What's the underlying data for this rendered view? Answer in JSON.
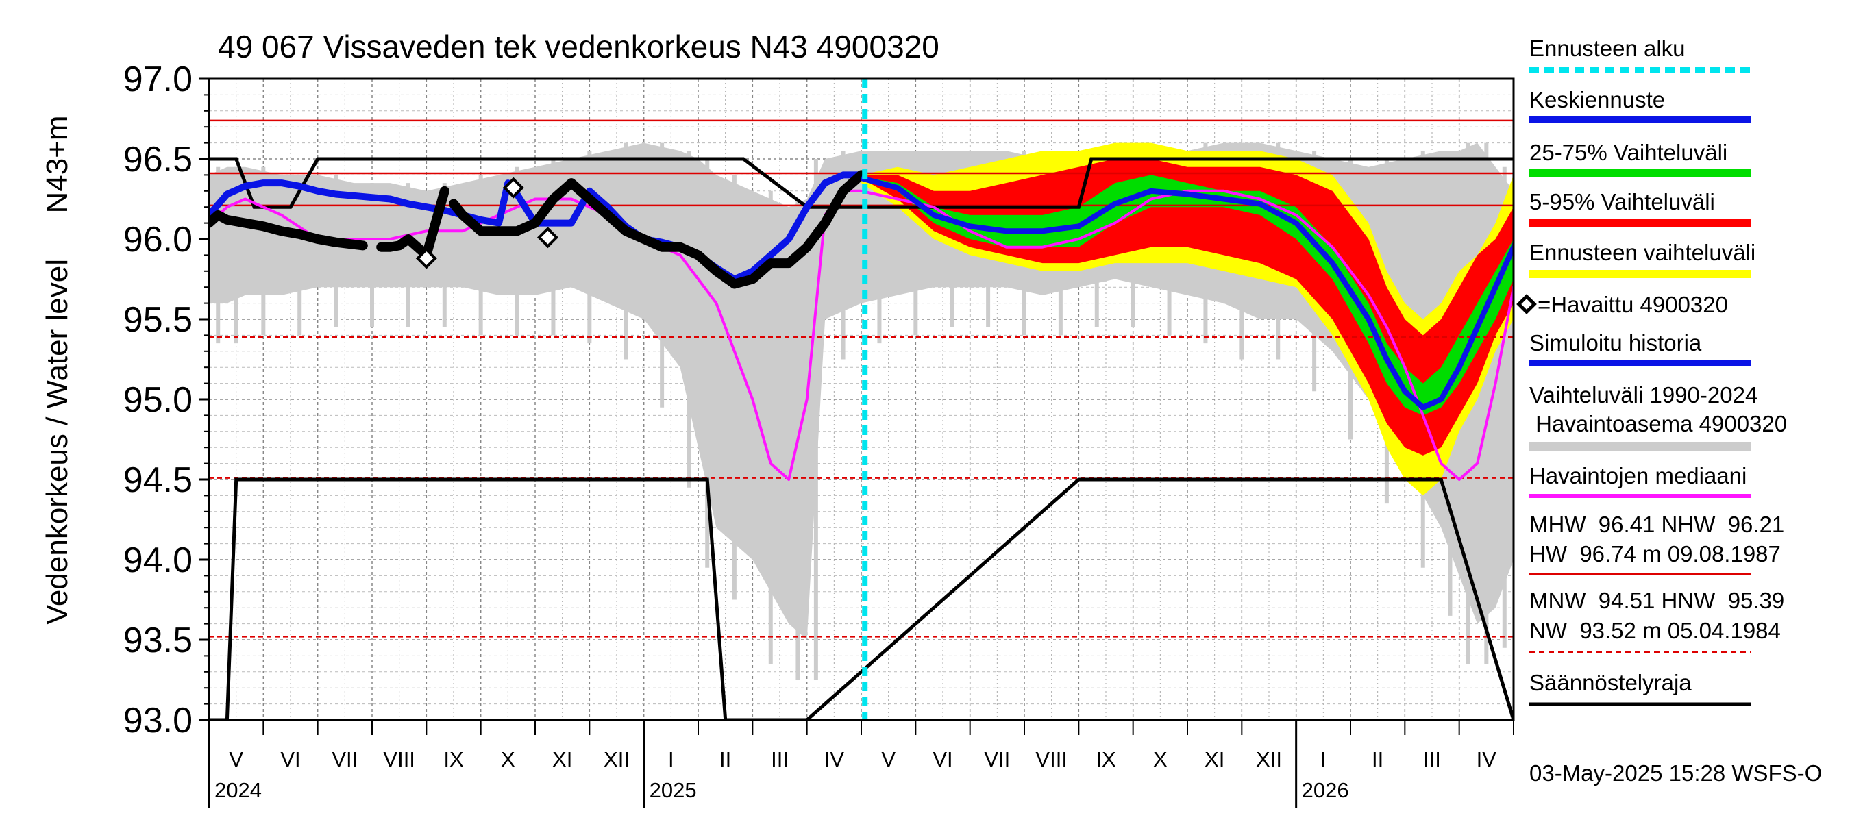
{
  "chart_data": {
    "type": "line",
    "title": "49 067 Vissaveden tek vedenkorkeus N43 4900320",
    "ylabel_left": "Vedenkorkeus / Water level",
    "ylabel_unit": "N43+m",
    "ylim": [
      93.0,
      97.0
    ],
    "yticks": [
      "97.0",
      "96.5",
      "96.0",
      "95.5",
      "95.0",
      "94.5",
      "94.0",
      "93.5",
      "93.0"
    ],
    "xlim": [
      "2024-05-01",
      "2026-05-01"
    ],
    "grid": true,
    "forecast_start": "2025-05-03",
    "months": [
      "V",
      "VI",
      "VII",
      "VIII",
      "IX",
      "X",
      "XI",
      "XII",
      "I",
      "II",
      "III",
      "IV",
      "V",
      "VI",
      "VII",
      "VIII",
      "IX",
      "X",
      "XI",
      "XII",
      "I",
      "II",
      "III",
      "IV"
    ],
    "years": [
      {
        "label": "2024",
        "month": 0
      },
      {
        "label": "2025",
        "month": 8
      },
      {
        "label": "2026",
        "month": 20
      }
    ],
    "reference_lines": [
      {
        "name": "HW",
        "value": 96.74,
        "style": "solid"
      },
      {
        "name": "MHW",
        "value": 96.41,
        "style": "solid"
      },
      {
        "name": "NHW",
        "value": 96.21,
        "style": "solid"
      },
      {
        "name": "HNW",
        "value": 95.39,
        "style": "dashed"
      },
      {
        "name": "MNW",
        "value": 94.51,
        "style": "dashed"
      },
      {
        "name": "NW",
        "value": 93.52,
        "style": "dashed"
      }
    ],
    "colors": {
      "forecast_start": "#00e5ee",
      "mean_forecast": "#0a14e6",
      "iqr": "#00dd00",
      "p5_95": "#ff0000",
      "forecast_range": "#ffff00",
      "observed": "#000000",
      "simulated": "#0a14e6",
      "history_range": "#cccccc",
      "median": "#ff14ff",
      "ref": "#dd0000",
      "regulation": "#000000"
    },
    "series": {
      "regulation_limit": {
        "x": [
          0,
          1,
          1.5,
          2.5,
          4.5,
          6.0,
          11.5,
          12.7,
          13.7,
          15.5,
          16.5,
          20.0,
          27.5,
          28.5,
          29.5,
          33.0,
          48.0,
          48.7,
          49.3,
          52.0,
          56.0,
          57.0,
          68.0,
          72.0,
          73.0
        ],
        "y_upper": [
          96.5,
          96.5,
          96.5,
          96.2,
          96.2,
          96.5,
          96.5,
          96.5,
          96.5,
          96.5,
          96.5,
          96.5,
          96.5,
          96.5,
          96.5,
          96.2,
          96.2,
          96.5,
          96.5,
          96.5,
          96.5,
          96.5,
          96.5,
          96.5,
          96.5
        ],
        "y_lower": [
          93.0,
          93.0,
          94.5,
          94.5,
          94.5,
          94.5,
          94.5,
          94.5,
          94.5,
          94.5,
          94.5,
          94.5,
          94.5,
          93.0,
          93.0,
          93.0,
          94.5,
          94.5,
          94.5,
          94.5,
          94.5,
          94.5,
          94.5,
          93.0,
          93.0
        ]
      },
      "history_range": {
        "x": [
          0,
          1,
          2,
          4,
          6,
          8,
          10,
          12,
          14,
          16,
          18,
          20,
          22,
          24,
          26,
          27,
          28,
          30,
          32,
          33,
          34,
          36,
          38,
          40,
          42,
          44,
          46,
          48,
          50,
          52,
          54,
          56,
          58,
          60,
          62,
          64,
          66,
          68,
          69,
          70,
          71,
          72,
          73
        ],
        "upper": [
          96.4,
          96.45,
          96.45,
          96.4,
          96.4,
          96.35,
          96.35,
          96.3,
          96.35,
          96.4,
          96.45,
          96.5,
          96.55,
          96.6,
          96.55,
          96.5,
          96.4,
          96.3,
          96.2,
          96.25,
          96.5,
          96.55,
          96.55,
          96.55,
          96.55,
          96.55,
          96.5,
          96.45,
          96.5,
          96.55,
          96.55,
          96.6,
          96.6,
          96.55,
          96.5,
          96.45,
          96.5,
          96.55,
          96.55,
          96.6,
          96.45,
          96.3,
          96.6
        ],
        "lower": [
          95.6,
          95.6,
          95.65,
          95.65,
          95.7,
          95.7,
          95.7,
          95.7,
          95.7,
          95.65,
          95.65,
          95.7,
          95.6,
          95.5,
          95.2,
          94.7,
          94.2,
          94.0,
          93.6,
          93.5,
          95.5,
          95.6,
          95.65,
          95.7,
          95.7,
          95.7,
          95.65,
          95.7,
          95.75,
          95.7,
          95.65,
          95.6,
          95.5,
          95.5,
          95.3,
          95.0,
          94.6,
          94.2,
          93.9,
          93.6,
          93.7,
          94.0,
          94.4
        ]
      },
      "median": {
        "x": [
          0,
          1,
          2,
          4,
          6,
          8,
          10,
          12,
          14,
          16,
          18,
          20,
          22,
          24,
          26,
          27,
          28,
          30,
          31,
          32,
          33,
          34,
          35,
          36,
          38,
          40,
          42,
          44,
          46,
          48,
          50,
          52,
          54,
          56,
          58,
          60,
          62,
          64,
          65,
          66,
          67,
          68,
          69,
          70,
          71,
          72,
          73
        ],
        "y": [
          96.1,
          96.2,
          96.25,
          96.15,
          96.0,
          96.0,
          96.0,
          96.05,
          96.05,
          96.15,
          96.25,
          96.25,
          96.15,
          96.0,
          95.9,
          95.75,
          95.6,
          95.0,
          94.6,
          94.5,
          95.0,
          96.15,
          96.3,
          96.3,
          96.25,
          96.2,
          96.05,
          95.95,
          95.95,
          96.0,
          96.1,
          96.25,
          96.3,
          96.3,
          96.25,
          96.15,
          95.95,
          95.65,
          95.45,
          95.2,
          94.9,
          94.6,
          94.5,
          94.6,
          95.1,
          95.7,
          96.15
        ]
      },
      "observed": {
        "x": [
          0,
          0.5,
          1,
          2,
          3,
          4,
          5,
          6,
          7,
          8.5,
          9.5,
          10,
          10.5,
          11,
          12,
          12.5,
          13,
          13.5,
          14,
          15,
          16,
          17,
          18,
          19,
          20,
          21,
          22,
          23,
          24,
          25,
          26,
          27,
          28,
          29,
          30,
          31,
          32,
          33,
          34,
          35,
          36
        ],
        "y": [
          96.1,
          96.15,
          96.12,
          96.1,
          96.08,
          96.05,
          96.03,
          96.0,
          95.98,
          95.96,
          95.95,
          95.95,
          95.96,
          96.0,
          95.9,
          96.1,
          96.3,
          96.22,
          96.15,
          96.05,
          96.05,
          96.05,
          96.1,
          96.25,
          96.35,
          96.25,
          96.15,
          96.05,
          96.0,
          95.95,
          95.95,
          95.9,
          95.8,
          95.72,
          95.75,
          95.85,
          95.85,
          95.95,
          96.1,
          96.3,
          96.4
        ],
        "markers_x": [
          12.0,
          16.8,
          18.7
        ],
        "markers_y": [
          95.88,
          96.32,
          96.01
        ]
      },
      "simulated": {
        "x": [
          0,
          1,
          2,
          3,
          4,
          5,
          6,
          7,
          8,
          9,
          10,
          11,
          12,
          13,
          14,
          15,
          16,
          16.5,
          17,
          18,
          19,
          20,
          21,
          22,
          23,
          24,
          25,
          26,
          27,
          28,
          29,
          30,
          31,
          32,
          33,
          34,
          35,
          36
        ],
        "y": [
          96.15,
          96.28,
          96.33,
          96.35,
          96.35,
          96.33,
          96.3,
          96.28,
          96.27,
          96.26,
          96.25,
          96.22,
          96.2,
          96.18,
          96.15,
          96.12,
          96.1,
          96.35,
          96.28,
          96.1,
          96.1,
          96.1,
          96.3,
          96.2,
          96.08,
          96.0,
          95.98,
          95.95,
          95.9,
          95.82,
          95.75,
          95.8,
          95.9,
          96.0,
          96.2,
          96.35,
          96.4,
          96.4
        ]
      },
      "forecast_range": {
        "x": [
          36,
          38,
          40,
          42,
          44,
          46,
          48,
          50,
          52,
          54,
          56,
          58,
          60,
          62,
          64,
          65,
          66,
          67,
          68,
          69,
          70,
          71,
          72,
          73
        ],
        "upper": [
          96.4,
          96.45,
          96.4,
          96.45,
          96.5,
          96.55,
          96.55,
          96.6,
          96.6,
          96.55,
          96.55,
          96.55,
          96.5,
          96.4,
          96.1,
          95.8,
          95.6,
          95.5,
          95.6,
          95.8,
          95.9,
          96.1,
          96.4,
          96.8
        ],
        "lower": [
          96.35,
          96.2,
          96.0,
          95.9,
          95.85,
          95.8,
          95.8,
          95.85,
          95.85,
          95.85,
          95.8,
          95.75,
          95.7,
          95.4,
          95.0,
          94.7,
          94.5,
          94.4,
          94.5,
          94.8,
          95.0,
          95.3,
          95.5,
          95.8
        ]
      },
      "p5_95": {
        "x": [
          36,
          38,
          40,
          42,
          44,
          46,
          48,
          50,
          52,
          54,
          56,
          58,
          60,
          62,
          64,
          65,
          66,
          67,
          68,
          69,
          70,
          71,
          72,
          73
        ],
        "upper": [
          96.4,
          96.4,
          96.3,
          96.3,
          96.35,
          96.4,
          96.45,
          96.5,
          96.5,
          96.45,
          96.45,
          96.45,
          96.4,
          96.3,
          96.0,
          95.7,
          95.5,
          95.4,
          95.5,
          95.7,
          95.9,
          96.0,
          96.2,
          96.5
        ],
        "lower": [
          96.38,
          96.25,
          96.05,
          95.95,
          95.9,
          95.85,
          95.85,
          95.9,
          95.95,
          95.95,
          95.9,
          95.85,
          95.75,
          95.5,
          95.1,
          94.85,
          94.7,
          94.65,
          94.7,
          94.9,
          95.1,
          95.4,
          95.6,
          95.9
        ]
      },
      "iqr": {
        "x": [
          36,
          38,
          40,
          42,
          44,
          46,
          48,
          50,
          52,
          54,
          56,
          58,
          60,
          62,
          64,
          65,
          66,
          67,
          68,
          69,
          70,
          71,
          72,
          73
        ],
        "upper": [
          96.39,
          96.35,
          96.2,
          96.15,
          96.15,
          96.15,
          96.2,
          96.35,
          96.4,
          96.35,
          96.3,
          96.3,
          96.2,
          95.95,
          95.6,
          95.35,
          95.2,
          95.1,
          95.2,
          95.4,
          95.6,
          95.8,
          96.0,
          96.3
        ],
        "lower": [
          96.38,
          96.3,
          96.1,
          96.0,
          95.95,
          95.95,
          95.95,
          96.1,
          96.2,
          96.2,
          96.2,
          96.15,
          96.0,
          95.75,
          95.35,
          95.1,
          94.95,
          94.9,
          94.95,
          95.1,
          95.3,
          95.5,
          95.75,
          96.1
        ]
      },
      "mean_forecast": {
        "x": [
          36,
          38,
          40,
          42,
          44,
          46,
          48,
          50,
          52,
          54,
          56,
          58,
          60,
          62,
          64,
          65,
          66,
          67,
          68,
          69,
          70,
          71,
          72,
          73
        ],
        "y": [
          96.38,
          96.32,
          96.15,
          96.08,
          96.05,
          96.05,
          96.08,
          96.22,
          96.3,
          96.28,
          96.25,
          96.22,
          96.1,
          95.85,
          95.5,
          95.25,
          95.05,
          94.95,
          95.0,
          95.2,
          95.45,
          95.7,
          95.95,
          96.2
        ]
      }
    }
  },
  "legend": {
    "items": [
      {
        "label": "Ennusteen alku",
        "type": "dashed",
        "color": "#00e5ee"
      },
      {
        "label": "Keskiennuste",
        "type": "line",
        "color": "#0a14e6"
      },
      {
        "label": "25-75% Vaihteluväli",
        "type": "line",
        "color": "#00dd00"
      },
      {
        "label": "5-95% Vaihteluväli",
        "type": "line",
        "color": "#ff0000"
      },
      {
        "label": "Ennusteen vaihteluväli",
        "type": "line",
        "color": "#ffff00"
      },
      {
        "label": "=Havaittu 4900320",
        "type": "marker",
        "color": "#000000"
      },
      {
        "label": "Simuloitu historia",
        "type": "line",
        "color": "#0a14e6"
      },
      {
        "label": "Vaihteluväli 1990-2024",
        "label2": " Havaintoasema 4900320",
        "type": "line",
        "color": "#cccccc"
      },
      {
        "label": "Havaintojen mediaani",
        "type": "line",
        "color": "#ff14ff"
      }
    ],
    "stats_high": {
      "line1": "MHW  96.41 NHW  96.21",
      "line2": "HW  96.74 m 09.08.1987"
    },
    "stats_low": {
      "line1": "MNW  94.51 HNW  95.39",
      "line2": "NW  93.52 m 05.04.1984"
    },
    "regulation_label": "Säännöstelyraja"
  },
  "footer": "03-May-2025 15:28 WSFS-O"
}
